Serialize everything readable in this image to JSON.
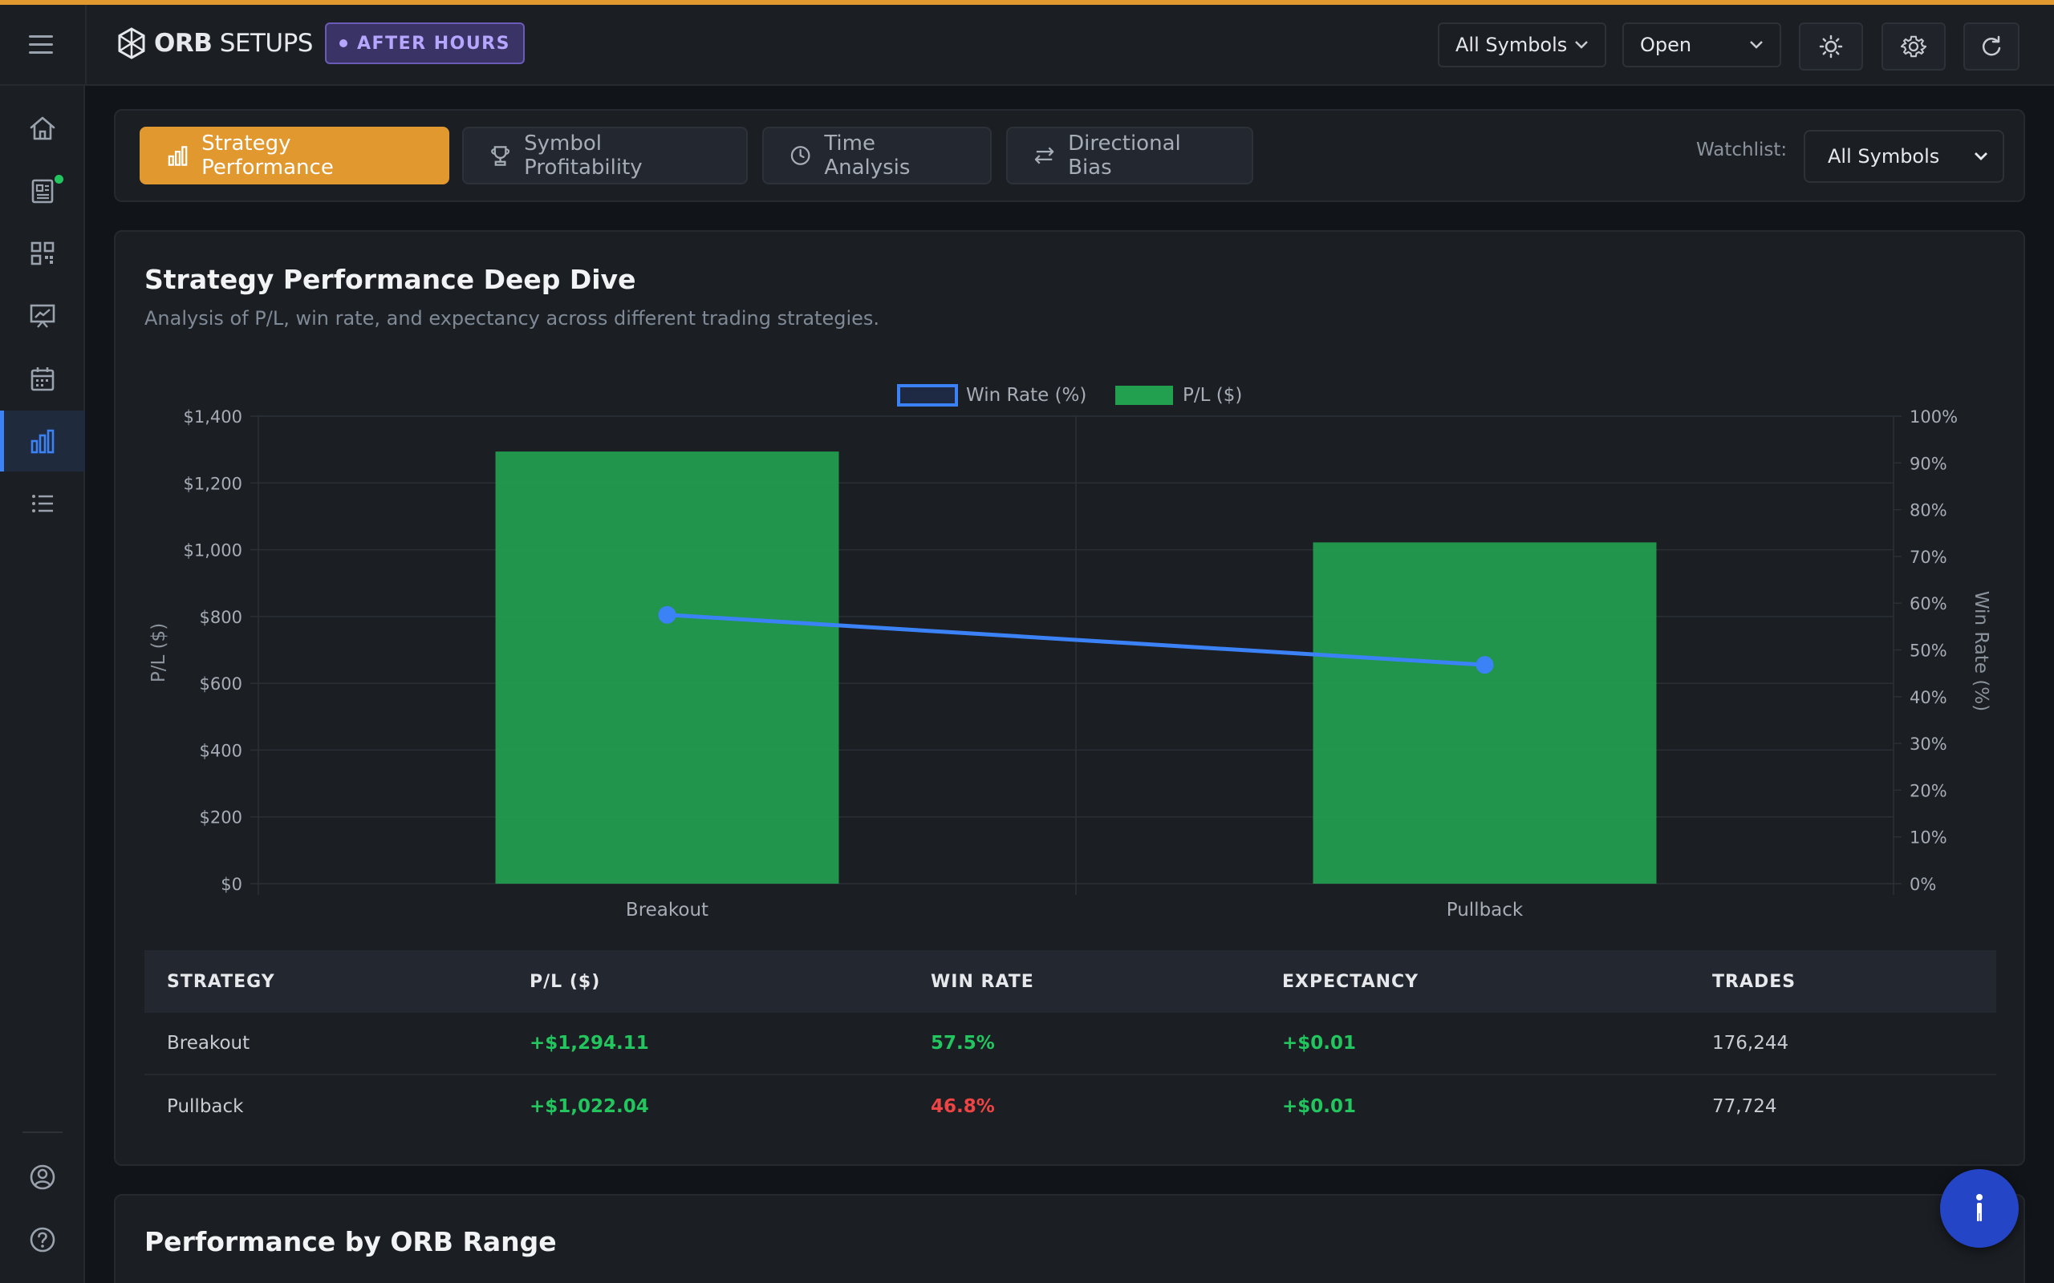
{
  "header": {
    "logo_bold": "ORB",
    "logo_light": "SETUPS",
    "market_status": "AFTER HOURS",
    "symbol_filter": "All Symbols",
    "status_filter": "Open"
  },
  "tabs": [
    {
      "label": "Strategy Performance",
      "icon": "bar-chart-icon"
    },
    {
      "label": "Symbol Profitability",
      "icon": "trophy-icon"
    },
    {
      "label": "Time Analysis",
      "icon": "clock-icon"
    },
    {
      "label": "Directional Bias",
      "icon": "arrows-exchange-icon"
    }
  ],
  "watchlist": {
    "label": "Watchlist:",
    "value": "All Symbols"
  },
  "main": {
    "title": "Strategy Performance Deep Dive",
    "subtitle": "Analysis of P/L, win rate, and expectancy across different trading strategies."
  },
  "chart_data": {
    "type": "bar",
    "categories": [
      "Breakout",
      "Pullback"
    ],
    "series": [
      {
        "name": "P/L ($)",
        "type": "bar",
        "axis": "left",
        "values": [
          1294.11,
          1022.04
        ],
        "color": "#22a04f"
      },
      {
        "name": "Win Rate (%)",
        "type": "line",
        "axis": "right",
        "values": [
          57.5,
          46.8
        ],
        "color": "#3b82f6"
      }
    ],
    "ylabel": "P/L ($)",
    "y2label": "Win Rate (%)",
    "ylim": [
      0,
      1400
    ],
    "y2lim": [
      0,
      100
    ],
    "yticks": [
      "$0",
      "$200",
      "$400",
      "$600",
      "$800",
      "$1,000",
      "$1,200",
      "$1,400"
    ],
    "y2ticks": [
      "0%",
      "10%",
      "20%",
      "30%",
      "40%",
      "50%",
      "60%",
      "70%",
      "80%",
      "90%",
      "100%"
    ],
    "legend_position": "top-center",
    "grid": true
  },
  "table": {
    "headers": [
      "STRATEGY",
      "P/L ($)",
      "WIN RATE",
      "EXPECTANCY",
      "TRADES"
    ],
    "rows": [
      {
        "strategy": "Breakout",
        "pl": "+$1,294.11",
        "win_rate": "57.5%",
        "expectancy": "+$0.01",
        "trades": "176,244"
      },
      {
        "strategy": "Pullback",
        "pl": "+$1,022.04",
        "win_rate": "46.8%",
        "expectancy": "+$0.01",
        "trades": "77,724"
      }
    ]
  },
  "section2": {
    "title": "Performance by ORB Range"
  },
  "colors": {
    "accent": "#e0982f",
    "positive": "#22c55e",
    "negative": "#ef4444",
    "line": "#3b82f6",
    "bar": "#22a04f"
  }
}
